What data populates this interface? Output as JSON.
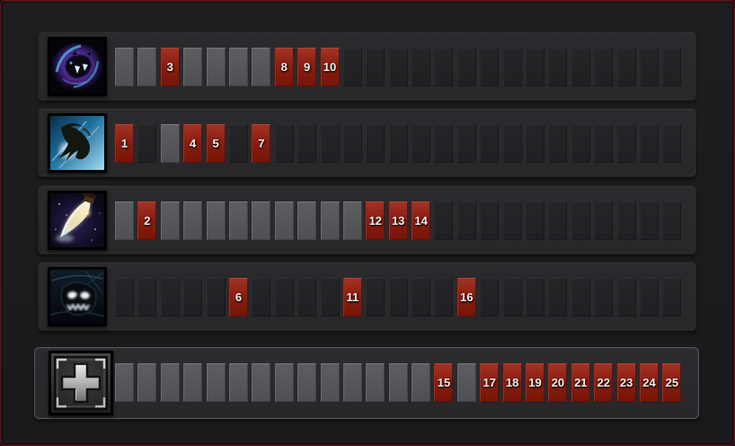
{
  "panel": {
    "name": "ability-build",
    "levels_total": 25,
    "colors": {
      "skilled_slot": "#8b1e12",
      "open_slot": "#55575b",
      "locked_slot": "#232326",
      "row_panel": "#29292c",
      "background": "#1b1b1d",
      "frame_border": "#491317",
      "slot_number_text": "#f3efe9"
    }
  },
  "rows": [
    {
      "id": "ability-1",
      "icon": "void-creature-icon",
      "skilled_levels": [
        3,
        8,
        9,
        10
      ],
      "slots": [
        {
          "level": 1,
          "state": "open",
          "label": ""
        },
        {
          "level": 2,
          "state": "open",
          "label": ""
        },
        {
          "level": 3,
          "state": "taken",
          "label": "3"
        },
        {
          "level": 4,
          "state": "open",
          "label": ""
        },
        {
          "level": 5,
          "state": "open",
          "label": ""
        },
        {
          "level": 6,
          "state": "open",
          "label": ""
        },
        {
          "level": 7,
          "state": "open",
          "label": ""
        },
        {
          "level": 8,
          "state": "taken",
          "label": "8"
        },
        {
          "level": 9,
          "state": "taken",
          "label": "9"
        },
        {
          "level": 10,
          "state": "taken",
          "label": "10"
        },
        {
          "level": 11,
          "state": "locked",
          "label": ""
        },
        {
          "level": 12,
          "state": "locked",
          "label": ""
        },
        {
          "level": 13,
          "state": "locked",
          "label": ""
        },
        {
          "level": 14,
          "state": "locked",
          "label": ""
        },
        {
          "level": 15,
          "state": "locked",
          "label": ""
        },
        {
          "level": 16,
          "state": "locked",
          "label": ""
        },
        {
          "level": 17,
          "state": "locked",
          "label": ""
        },
        {
          "level": 18,
          "state": "locked",
          "label": ""
        },
        {
          "level": 19,
          "state": "locked",
          "label": ""
        },
        {
          "level": 20,
          "state": "locked",
          "label": ""
        },
        {
          "level": 21,
          "state": "locked",
          "label": ""
        },
        {
          "level": 22,
          "state": "locked",
          "label": ""
        },
        {
          "level": 23,
          "state": "locked",
          "label": ""
        },
        {
          "level": 24,
          "state": "locked",
          "label": ""
        },
        {
          "level": 25,
          "state": "locked",
          "label": ""
        }
      ]
    },
    {
      "id": "ability-2",
      "icon": "leaping-creature-icon",
      "skilled_levels": [
        1,
        4,
        5,
        7
      ],
      "slots": [
        {
          "level": 1,
          "state": "taken",
          "label": "1"
        },
        {
          "level": 2,
          "state": "locked",
          "label": ""
        },
        {
          "level": 3,
          "state": "open",
          "label": ""
        },
        {
          "level": 4,
          "state": "taken",
          "label": "4"
        },
        {
          "level": 5,
          "state": "taken",
          "label": "5"
        },
        {
          "level": 6,
          "state": "locked",
          "label": ""
        },
        {
          "level": 7,
          "state": "taken",
          "label": "7"
        },
        {
          "level": 8,
          "state": "locked",
          "label": ""
        },
        {
          "level": 9,
          "state": "locked",
          "label": ""
        },
        {
          "level": 10,
          "state": "locked",
          "label": ""
        },
        {
          "level": 11,
          "state": "locked",
          "label": ""
        },
        {
          "level": 12,
          "state": "locked",
          "label": ""
        },
        {
          "level": 13,
          "state": "locked",
          "label": ""
        },
        {
          "level": 14,
          "state": "locked",
          "label": ""
        },
        {
          "level": 15,
          "state": "locked",
          "label": ""
        },
        {
          "level": 16,
          "state": "locked",
          "label": ""
        },
        {
          "level": 17,
          "state": "locked",
          "label": ""
        },
        {
          "level": 18,
          "state": "locked",
          "label": ""
        },
        {
          "level": 19,
          "state": "locked",
          "label": ""
        },
        {
          "level": 20,
          "state": "locked",
          "label": ""
        },
        {
          "level": 21,
          "state": "locked",
          "label": ""
        },
        {
          "level": 22,
          "state": "locked",
          "label": ""
        },
        {
          "level": 23,
          "state": "locked",
          "label": ""
        },
        {
          "level": 24,
          "state": "locked",
          "label": ""
        },
        {
          "level": 25,
          "state": "locked",
          "label": ""
        }
      ]
    },
    {
      "id": "ability-3",
      "icon": "glowing-blade-icon",
      "skilled_levels": [
        2,
        12,
        13,
        14
      ],
      "slots": [
        {
          "level": 1,
          "state": "open",
          "label": ""
        },
        {
          "level": 2,
          "state": "taken",
          "label": "2"
        },
        {
          "level": 3,
          "state": "open",
          "label": ""
        },
        {
          "level": 4,
          "state": "open",
          "label": ""
        },
        {
          "level": 5,
          "state": "open",
          "label": ""
        },
        {
          "level": 6,
          "state": "open",
          "label": ""
        },
        {
          "level": 7,
          "state": "open",
          "label": ""
        },
        {
          "level": 8,
          "state": "open",
          "label": ""
        },
        {
          "level": 9,
          "state": "open",
          "label": ""
        },
        {
          "level": 10,
          "state": "open",
          "label": ""
        },
        {
          "level": 11,
          "state": "open",
          "label": ""
        },
        {
          "level": 12,
          "state": "taken",
          "label": "12"
        },
        {
          "level": 13,
          "state": "taken",
          "label": "13"
        },
        {
          "level": 14,
          "state": "taken",
          "label": "14"
        },
        {
          "level": 15,
          "state": "locked",
          "label": ""
        },
        {
          "level": 16,
          "state": "locked",
          "label": ""
        },
        {
          "level": 17,
          "state": "locked",
          "label": ""
        },
        {
          "level": 18,
          "state": "locked",
          "label": ""
        },
        {
          "level": 19,
          "state": "locked",
          "label": ""
        },
        {
          "level": 20,
          "state": "locked",
          "label": ""
        },
        {
          "level": 21,
          "state": "locked",
          "label": ""
        },
        {
          "level": 22,
          "state": "locked",
          "label": ""
        },
        {
          "level": 23,
          "state": "locked",
          "label": ""
        },
        {
          "level": 24,
          "state": "locked",
          "label": ""
        },
        {
          "level": 25,
          "state": "locked",
          "label": ""
        }
      ]
    },
    {
      "id": "ability-4-ultimate",
      "icon": "shadow-skull-icon",
      "skilled_levels": [
        6,
        11,
        16
      ],
      "slots": [
        {
          "level": 1,
          "state": "locked",
          "label": ""
        },
        {
          "level": 2,
          "state": "locked",
          "label": ""
        },
        {
          "level": 3,
          "state": "locked",
          "label": ""
        },
        {
          "level": 4,
          "state": "locked",
          "label": ""
        },
        {
          "level": 5,
          "state": "locked",
          "label": ""
        },
        {
          "level": 6,
          "state": "taken",
          "label": "6"
        },
        {
          "level": 7,
          "state": "locked",
          "label": ""
        },
        {
          "level": 8,
          "state": "locked",
          "label": ""
        },
        {
          "level": 9,
          "state": "locked",
          "label": ""
        },
        {
          "level": 10,
          "state": "locked",
          "label": ""
        },
        {
          "level": 11,
          "state": "taken",
          "label": "11"
        },
        {
          "level": 12,
          "state": "locked",
          "label": ""
        },
        {
          "level": 13,
          "state": "locked",
          "label": ""
        },
        {
          "level": 14,
          "state": "locked",
          "label": ""
        },
        {
          "level": 15,
          "state": "locked",
          "label": ""
        },
        {
          "level": 16,
          "state": "taken",
          "label": "16"
        },
        {
          "level": 17,
          "state": "locked",
          "label": ""
        },
        {
          "level": 18,
          "state": "locked",
          "label": ""
        },
        {
          "level": 19,
          "state": "locked",
          "label": ""
        },
        {
          "level": 20,
          "state": "locked",
          "label": ""
        },
        {
          "level": 21,
          "state": "locked",
          "label": ""
        },
        {
          "level": 22,
          "state": "locked",
          "label": ""
        },
        {
          "level": 23,
          "state": "locked",
          "label": ""
        },
        {
          "level": 24,
          "state": "locked",
          "label": ""
        },
        {
          "level": 25,
          "state": "locked",
          "label": ""
        }
      ]
    },
    {
      "id": "attribute-bonus",
      "icon": "plus-icon",
      "skilled_levels": [
        15,
        17,
        18,
        19,
        20,
        21,
        22,
        23,
        24,
        25
      ],
      "slots": [
        {
          "level": 1,
          "state": "open",
          "label": ""
        },
        {
          "level": 2,
          "state": "open",
          "label": ""
        },
        {
          "level": 3,
          "state": "open",
          "label": ""
        },
        {
          "level": 4,
          "state": "open",
          "label": ""
        },
        {
          "level": 5,
          "state": "open",
          "label": ""
        },
        {
          "level": 6,
          "state": "open",
          "label": ""
        },
        {
          "level": 7,
          "state": "open",
          "label": ""
        },
        {
          "level": 8,
          "state": "open",
          "label": ""
        },
        {
          "level": 9,
          "state": "open",
          "label": ""
        },
        {
          "level": 10,
          "state": "open",
          "label": ""
        },
        {
          "level": 11,
          "state": "open",
          "label": ""
        },
        {
          "level": 12,
          "state": "open",
          "label": ""
        },
        {
          "level": 13,
          "state": "open",
          "label": ""
        },
        {
          "level": 14,
          "state": "open",
          "label": ""
        },
        {
          "level": 15,
          "state": "taken",
          "label": "15"
        },
        {
          "level": 16,
          "state": "open",
          "label": ""
        },
        {
          "level": 17,
          "state": "taken",
          "label": "17"
        },
        {
          "level": 18,
          "state": "taken",
          "label": "18"
        },
        {
          "level": 19,
          "state": "taken",
          "label": "19"
        },
        {
          "level": 20,
          "state": "taken",
          "label": "20"
        },
        {
          "level": 21,
          "state": "taken",
          "label": "21"
        },
        {
          "level": 22,
          "state": "taken",
          "label": "22"
        },
        {
          "level": 23,
          "state": "taken",
          "label": "23"
        },
        {
          "level": 24,
          "state": "taken",
          "label": "24"
        },
        {
          "level": 25,
          "state": "taken",
          "label": "25"
        }
      ]
    }
  ]
}
